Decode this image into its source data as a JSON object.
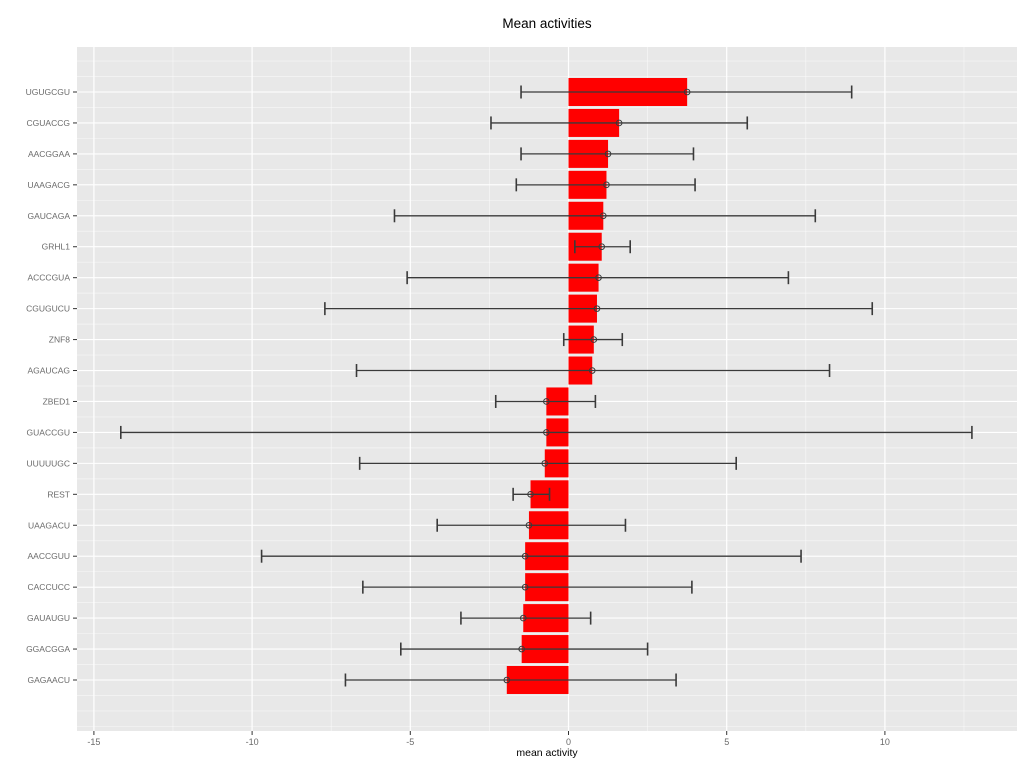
{
  "figure": {
    "title": "Mean activities",
    "xlabel": "mean activity"
  },
  "chart_data": {
    "type": "bar",
    "orientation": "horizontal",
    "title": "Mean activities",
    "xlabel": "mean activity",
    "ylabel": "",
    "legend": "none",
    "grid": "on",
    "xlim": [
      -15.5,
      14.2
    ],
    "x_major_ticks": [
      -15,
      -10,
      -5,
      0,
      5,
      10
    ],
    "x_minor_ticks": [
      -12.5,
      -7.5,
      -2.5,
      2.5,
      7.5,
      12.5
    ],
    "bar_color": "#FF0000",
    "errorbar_color": "#3a3a3a",
    "panel_bg": "#E8E8E8",
    "grid_color": "#FFFFFF",
    "tick_label_color": "#6b6b6b",
    "categories": [
      "UGUGCGU",
      "CGUACCG",
      "AACGGAA",
      "UAAGACG",
      "GAUCAGA",
      "GRHL1",
      "ACCCGUA",
      "CGUGUCU",
      "ZNF8",
      "AGAUCAG",
      "ZBED1",
      "GUACCGU",
      "UUUUUGC",
      "REST",
      "UAAGACU",
      "AACCGUU",
      "CACCUCC",
      "GAUAUGU",
      "GGACGGA",
      "GAGAACU"
    ],
    "series": [
      {
        "name": "mean activity",
        "values": [
          3.75,
          1.6,
          1.25,
          1.2,
          1.1,
          1.05,
          0.95,
          0.9,
          0.8,
          0.75,
          -0.7,
          -0.7,
          -0.75,
          -1.2,
          -1.25,
          -1.37,
          -1.37,
          -1.43,
          -1.48,
          -1.95
        ]
      }
    ],
    "error_low": [
      -1.5,
      -2.45,
      -1.5,
      -1.65,
      -5.5,
      0.2,
      -5.1,
      -7.7,
      -0.15,
      -6.7,
      -2.3,
      -14.15,
      -6.6,
      -1.75,
      -4.15,
      -9.7,
      -6.5,
      -3.4,
      -5.3,
      -7.05
    ],
    "error_high": [
      8.95,
      5.65,
      3.95,
      4.0,
      7.8,
      1.95,
      6.95,
      9.6,
      1.7,
      8.25,
      0.85,
      12.75,
      5.3,
      -0.6,
      1.8,
      7.35,
      3.9,
      0.7,
      2.5,
      3.4
    ]
  }
}
